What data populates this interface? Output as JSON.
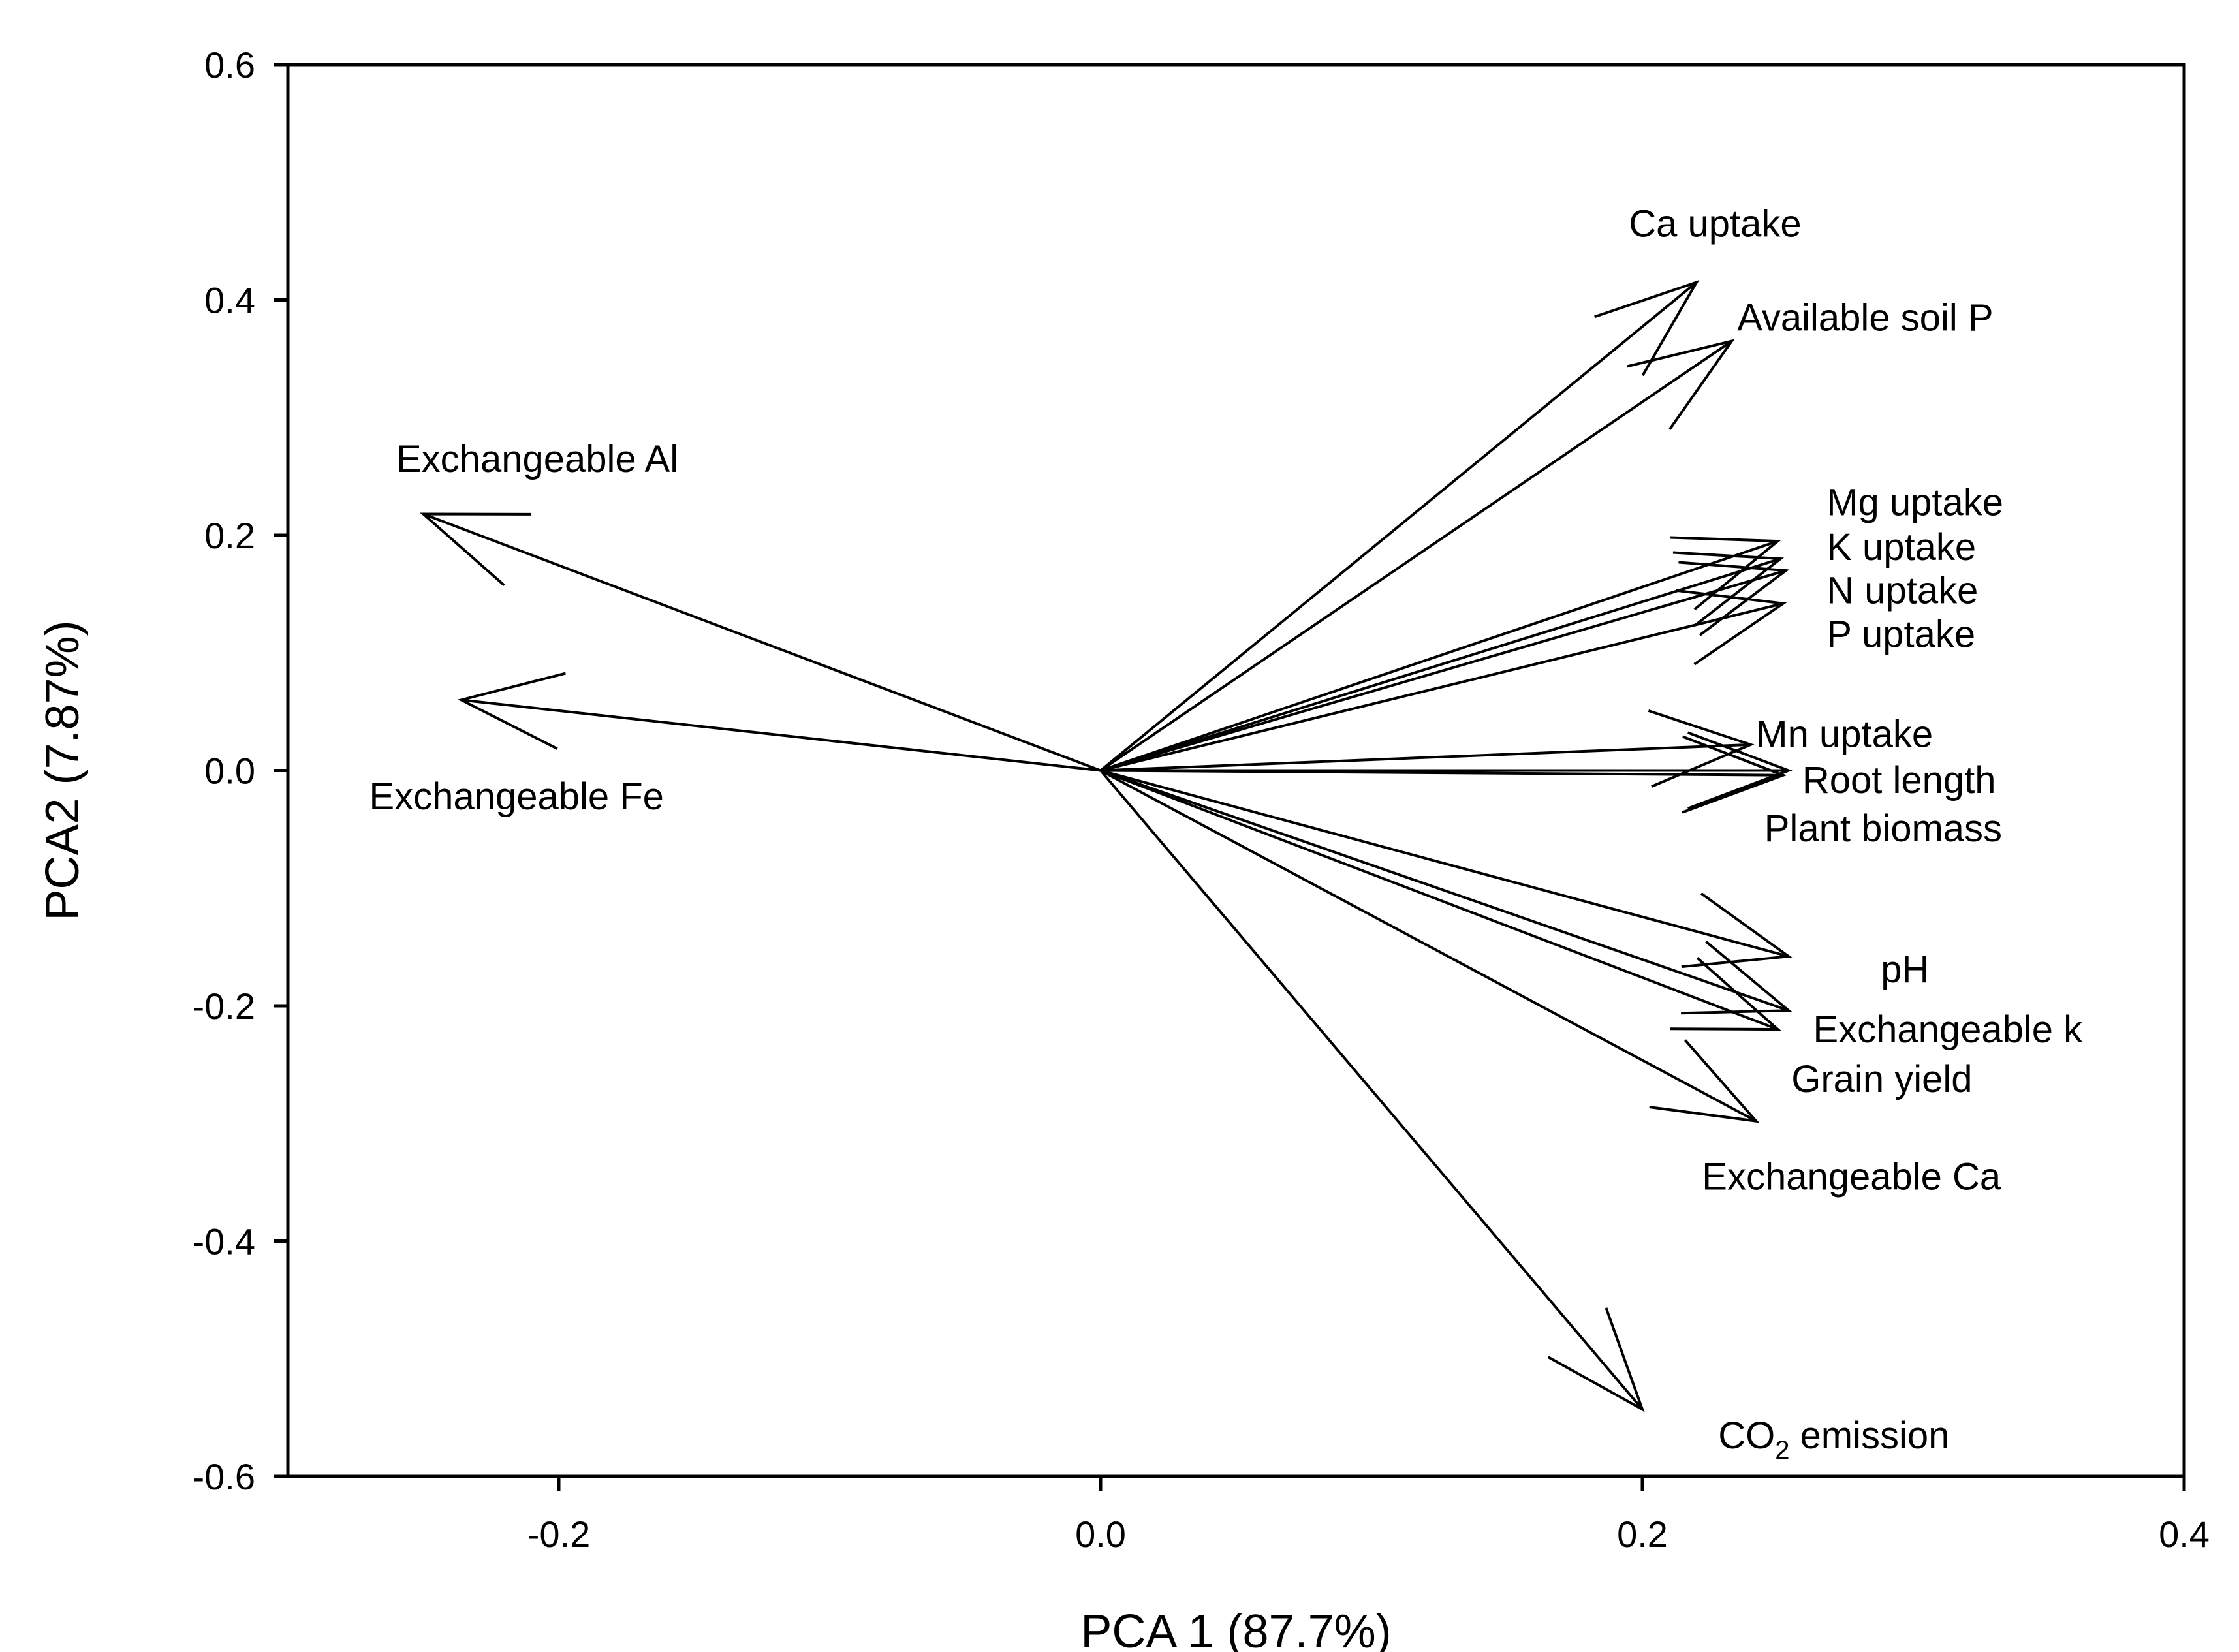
{
  "chart_data": {
    "type": "biplot",
    "xlabel": "PCA 1 (87.7%)",
    "ylabel": "PCA2 (7.87%)",
    "xlim": [
      -0.3,
      0.4
    ],
    "ylim": [
      -0.6,
      0.6
    ],
    "xticks": [
      -0.2,
      0.0,
      0.2,
      0.4
    ],
    "xtick_labels": [
      "-0.2",
      "0.0",
      "0.2",
      "0.4"
    ],
    "yticks": [
      -0.6,
      -0.4,
      -0.2,
      0.0,
      0.2,
      0.4,
      0.6
    ],
    "ytick_labels": [
      "-0.6",
      "-0.4",
      "-0.2",
      "0.0",
      "0.2",
      "0.4",
      "0.6"
    ],
    "vectors": [
      {
        "name": "Ca uptake",
        "x": 0.22,
        "y": 0.415,
        "lx": 0.195,
        "ly": 0.465
      },
      {
        "name": "Available soil P",
        "x": 0.233,
        "y": 0.365,
        "lx": 0.235,
        "ly": 0.385
      },
      {
        "name": "Exchangeable Al",
        "x": -0.25,
        "y": 0.218,
        "lx": -0.26,
        "ly": 0.265
      },
      {
        "name": "Mg uptake",
        "x": 0.25,
        "y": 0.195,
        "lx": 0.268,
        "ly": 0.228
      },
      {
        "name": "K uptake",
        "x": 0.251,
        "y": 0.18,
        "lx": 0.268,
        "ly": 0.19
      },
      {
        "name": "N uptake",
        "x": 0.253,
        "y": 0.17,
        "lx": 0.268,
        "ly": 0.153
      },
      {
        "name": "P uptake",
        "x": 0.252,
        "y": 0.142,
        "lx": 0.268,
        "ly": 0.116
      },
      {
        "name": "Exchangeable Fe",
        "x": -0.236,
        "y": 0.06,
        "lx": -0.27,
        "ly": -0.022
      },
      {
        "name": "Mn uptake",
        "x": 0.24,
        "y": 0.022,
        "lx": 0.242,
        "ly": 0.031
      },
      {
        "name": "Root length",
        "x": 0.254,
        "y": 0.0,
        "lx": 0.259,
        "ly": -0.008
      },
      {
        "name": "Plant biomass",
        "x": 0.252,
        "y": -0.004,
        "lx": 0.245,
        "ly": -0.049
      },
      {
        "name": "pH",
        "x": 0.254,
        "y": -0.158,
        "lx": 0.288,
        "ly": -0.169
      },
      {
        "name": "Exchangeable k",
        "x": 0.254,
        "y": -0.204,
        "lx": 0.263,
        "ly": -0.22
      },
      {
        "name": "Grain yield",
        "x": 0.25,
        "y": -0.22,
        "lx": 0.255,
        "ly": -0.262
      },
      {
        "name": "Exchangeable Ca",
        "x": 0.242,
        "y": -0.298,
        "lx": 0.222,
        "ly": -0.345
      }
    ],
    "co2_vector": {
      "x": 0.2,
      "y": -0.543,
      "lx": 0.228,
      "ly": -0.565,
      "prefix": "CO",
      "subscript": "2",
      "suffix": " emission"
    }
  }
}
